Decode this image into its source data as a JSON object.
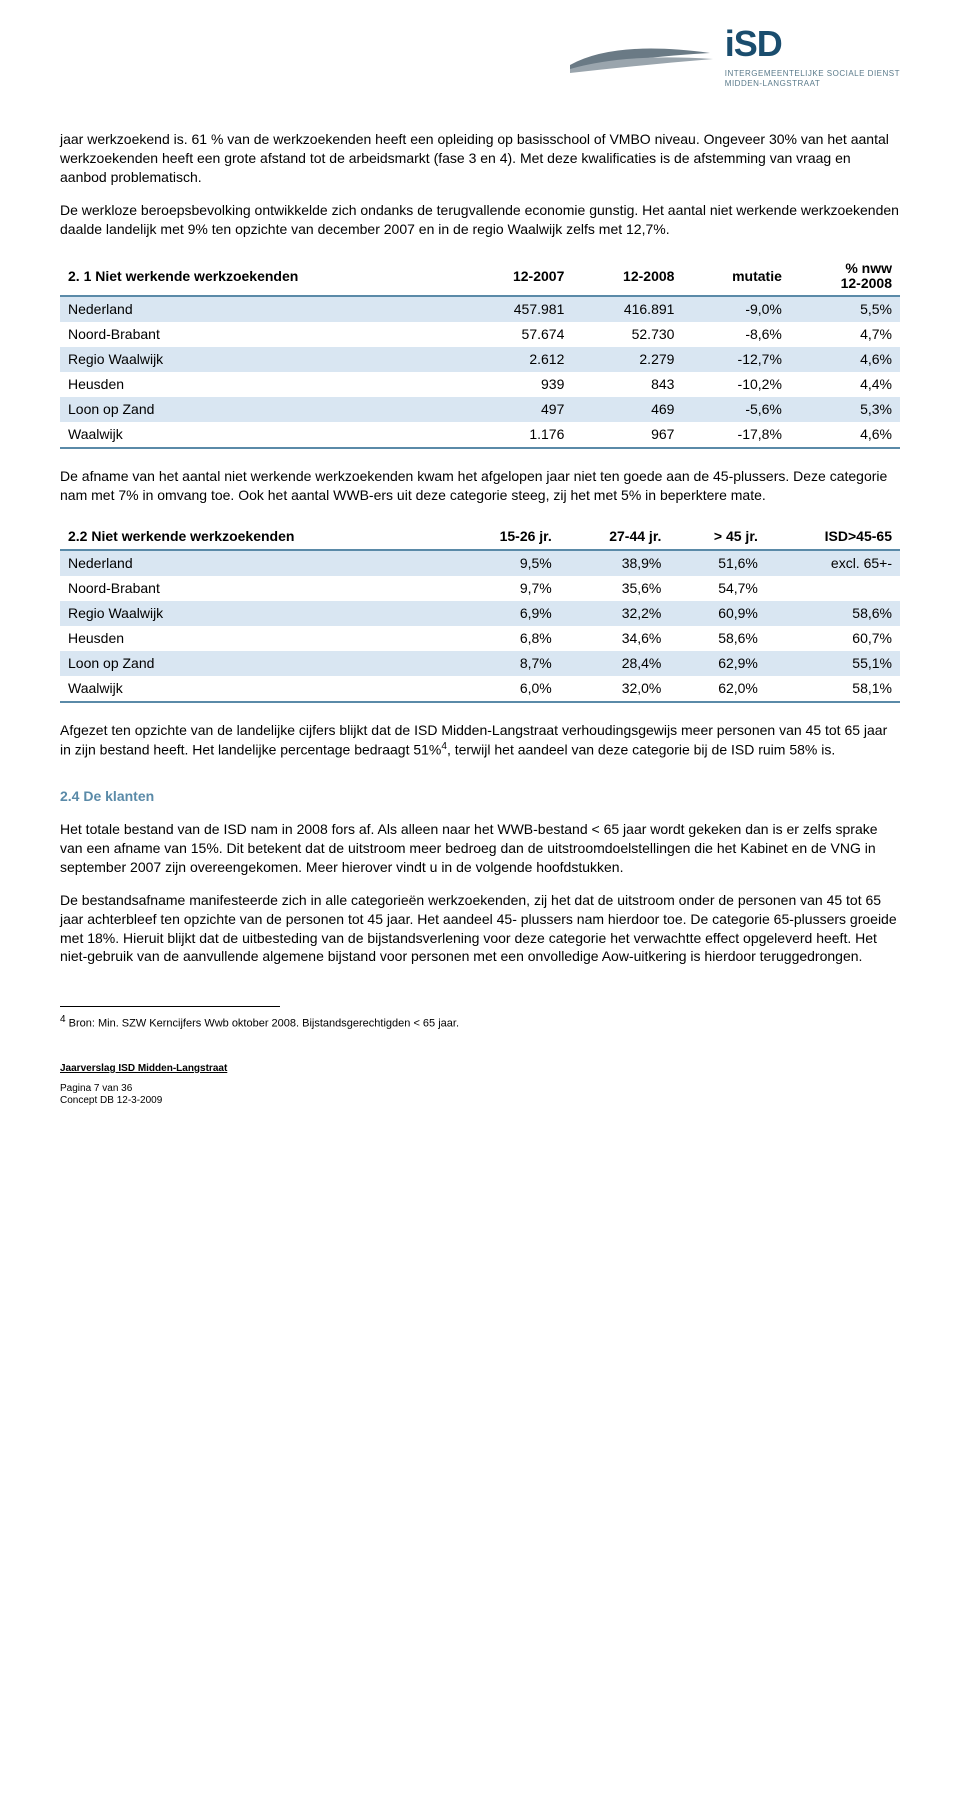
{
  "logo": {
    "isd": "iSD",
    "line1": "INTERGEMEENTELIJKE SOCIALE DIENST",
    "line2": "MIDDEN-LANGSTRAAT",
    "swoosh_color": "#6a7a85"
  },
  "para1": "jaar werkzoekend is. 61 % van de werkzoekenden heeft een opleiding op basisschool of VMBO niveau. Ongeveer 30% van het aantal werkzoekenden heeft een grote afstand tot de arbeidsmarkt (fase 3 en 4). Met deze kwalificaties is de afstemming van vraag en aanbod problematisch.",
  "para2": "De werkloze beroepsbevolking ontwikkelde zich ondanks de terugvallende economie gunstig. Het aantal niet werkende werkzoekenden daalde landelijk met 9% ten opzichte van december 2007 en in de regio Waalwijk zelfs met 12,7%.",
  "table1": {
    "header": [
      "2. 1 Niet werkende werkzoekenden",
      "12-2007",
      "12-2008",
      "mutatie",
      "% nww\n12-2008"
    ],
    "rows": [
      [
        "Nederland",
        "457.981",
        "416.891",
        "-9,0%",
        "5,5%"
      ],
      [
        "Noord-Brabant",
        "57.674",
        "52.730",
        "-8,6%",
        "4,7%"
      ],
      [
        "Regio Waalwijk",
        "2.612",
        "2.279",
        "-12,7%",
        "4,6%"
      ],
      [
        "Heusden",
        "939",
        "843",
        "-10,2%",
        "4,4%"
      ],
      [
        "Loon op Zand",
        "497",
        "469",
        "-5,6%",
        "5,3%"
      ],
      [
        "Waalwijk",
        "1.176",
        "967",
        "-17,8%",
        "4,6%"
      ]
    ],
    "alt_color": "#d9e6f2",
    "border_color": "#5a8aa8"
  },
  "para3": "De afname van het aantal niet werkende werkzoekenden kwam het afgelopen jaar niet ten goede aan de 45-plussers. Deze categorie nam met 7% in omvang toe. Ook het aantal WWB-ers uit deze categorie steeg, zij het met 5% in beperktere mate.",
  "table2": {
    "header": [
      "2.2 Niet werkende werkzoekenden",
      "15-26 jr.",
      "27-44 jr.",
      "> 45 jr.",
      "ISD>45-65"
    ],
    "rows": [
      [
        "Nederland",
        "9,5%",
        "38,9%",
        "51,6%",
        "excl. 65+-"
      ],
      [
        "Noord-Brabant",
        "9,7%",
        "35,6%",
        "54,7%",
        ""
      ],
      [
        "Regio Waalwijk",
        "6,9%",
        "32,2%",
        "60,9%",
        "58,6%"
      ],
      [
        "Heusden",
        "6,8%",
        "34,6%",
        "58,6%",
        "60,7%"
      ],
      [
        "Loon op Zand",
        "8,7%",
        "28,4%",
        "62,9%",
        "55,1%"
      ],
      [
        "Waalwijk",
        "6,0%",
        "32,0%",
        "62,0%",
        "58,1%"
      ]
    ]
  },
  "para4_pre": "Afgezet ten opzichte van de landelijke cijfers blijkt dat de ISD Midden-Langstraat verhoudingsgewijs meer personen van 45 tot 65 jaar in zijn bestand heeft. Het landelijke percentage bedraagt 51%",
  "para4_sup": "4",
  "para4_post": ", terwijl het aandeel van deze categorie bij de ISD ruim 58% is.",
  "heading24": "2.4 De klanten",
  "para5": "Het totale bestand van de ISD nam in 2008 fors af. Als alleen naar het WWB-bestand < 65 jaar wordt gekeken dan is er zelfs sprake van een afname van 15%. Dit betekent dat de uitstroom meer bedroeg dan de uitstroomdoelstellingen die het Kabinet en de VNG in september 2007 zijn overeengekomen. Meer hierover vindt u in de volgende hoofdstukken.",
  "para6": "De bestandsafname manifesteerde zich in alle categorieën werkzoekenden, zij het dat de uitstroom onder de personen van 45 tot 65 jaar achterbleef ten opzichte van de personen tot 45 jaar. Het aandeel 45- plussers nam hierdoor toe. De categorie 65-plussers groeide met 18%. Hieruit blijkt dat de uitbesteding van de bijstandsverlening voor deze categorie het verwachtte effect opgeleverd heeft. Het niet-gebruik van de aanvullende algemene bijstand voor personen met een onvolledige Aow-uitkering is hierdoor teruggedrongen.",
  "footnote_sup": "4",
  "footnote_text": " Bron: Min. SZW Kerncijfers Wwb oktober 2008. Bijstandsgerechtigden < 65 jaar.",
  "footer": {
    "title": "Jaarverslag ISD Midden-Langstraat",
    "page": "Pagina 7 van 36",
    "concept": "Concept DB 12-3-2009"
  }
}
